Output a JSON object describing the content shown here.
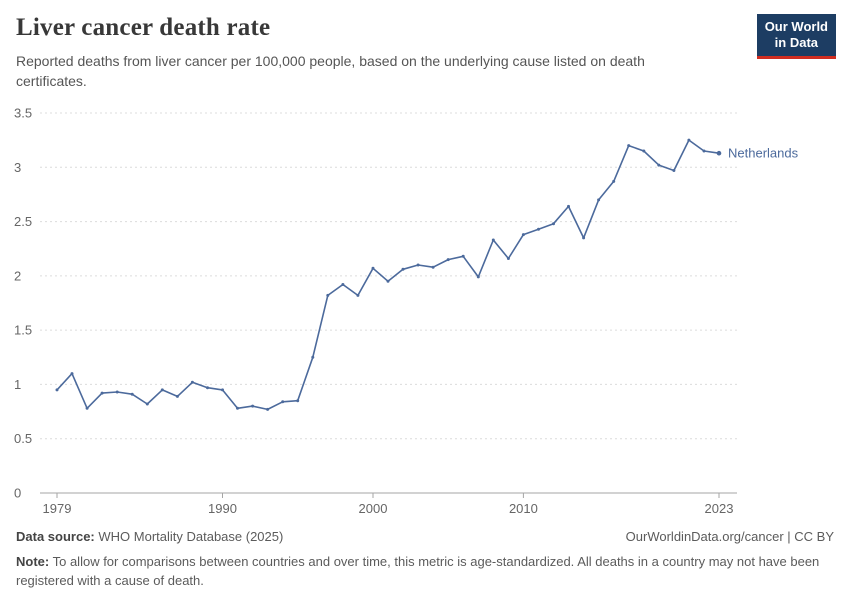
{
  "header": {
    "title": "Liver cancer death rate",
    "subtitle": "Reported deaths from liver cancer per 100,000 people, based on the underlying cause listed on death certificates.",
    "logo": {
      "line1": "Our World",
      "line2": "in Data"
    }
  },
  "chart_data": {
    "type": "line",
    "title": "Liver cancer death rate",
    "xlabel": "",
    "ylabel": "",
    "xlim": [
      1979,
      2023
    ],
    "ylim": [
      0,
      3.5
    ],
    "xticks": [
      1979,
      1990,
      2000,
      2010,
      2023
    ],
    "yticks": [
      0,
      0.5,
      1,
      1.5,
      2,
      2.5,
      3,
      3.5
    ],
    "grid": "dashed-horizontal",
    "legend_position": "end-of-line",
    "series": [
      {
        "name": "Netherlands",
        "color": "#4c6a9c",
        "x": [
          1979,
          1980,
          1981,
          1982,
          1983,
          1984,
          1985,
          1986,
          1987,
          1988,
          1989,
          1990,
          1991,
          1992,
          1993,
          1994,
          1995,
          1996,
          1997,
          1998,
          1999,
          2000,
          2001,
          2002,
          2003,
          2004,
          2005,
          2006,
          2007,
          2008,
          2009,
          2010,
          2011,
          2012,
          2013,
          2014,
          2015,
          2016,
          2017,
          2018,
          2019,
          2020,
          2021,
          2022,
          2023
        ],
        "values": [
          0.95,
          1.1,
          0.78,
          0.92,
          0.93,
          0.91,
          0.82,
          0.95,
          0.89,
          1.02,
          0.97,
          0.95,
          0.78,
          0.8,
          0.77,
          0.84,
          0.85,
          1.25,
          1.82,
          1.92,
          1.82,
          2.07,
          1.95,
          2.06,
          2.1,
          2.08,
          2.15,
          2.18,
          1.99,
          2.33,
          2.16,
          2.38,
          2.43,
          2.48,
          2.64,
          2.35,
          2.7,
          2.87,
          3.2,
          3.15,
          3.02,
          2.97,
          3.25,
          3.15,
          3.13
        ]
      }
    ],
    "end_label": "Netherlands"
  },
  "footer": {
    "source_label": "Data source:",
    "source_text": "WHO Mortality Database (2025)",
    "license": "OurWorldinData.org/cancer | CC BY",
    "note_label": "Note:",
    "note_text": "To allow for comparisons between countries and over time, this metric is age-standardized. All deaths in a country may not have been registered with a cause of death."
  },
  "colors": {
    "accent": "#4c6a9c",
    "grid": "#dcdcdc",
    "axis": "#a5a5a5",
    "tick_text": "#666666",
    "logo_bg": "#1d3d63",
    "logo_red": "#d12d20"
  }
}
